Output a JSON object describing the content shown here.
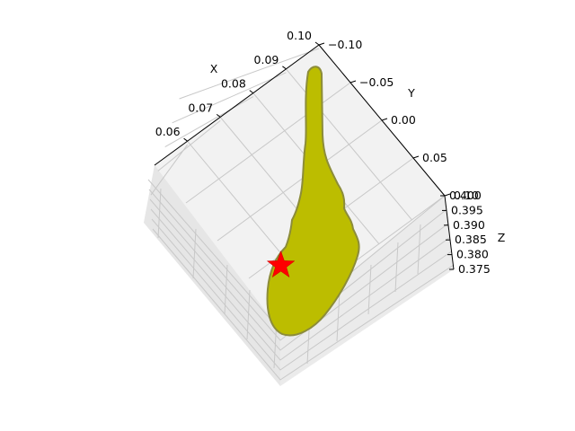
{
  "chart_data": {
    "type": "scatter",
    "projection": "3d",
    "title": "",
    "xlabel": "X",
    "ylabel": "Y",
    "zlabel": "Z",
    "xlim": [
      0.05,
      0.1
    ],
    "ylim": [
      -0.1,
      0.1
    ],
    "zlim": [
      0.375,
      0.4
    ],
    "x_ticks": [
      "0.06",
      "0.07",
      "0.08",
      "0.09",
      "0.10"
    ],
    "y_ticks": [
      "−0.10",
      "−0.05",
      "0.00",
      "0.05",
      "0.10"
    ],
    "z_ticks": [
      "0.375",
      "0.380",
      "0.385",
      "0.390",
      "0.395",
      "0.400"
    ],
    "grid": true,
    "series": [
      {
        "marker": "circle",
        "color": "#bcbd00",
        "edge_color": "#8c8c3a"
      },
      {
        "marker": "star",
        "color": "#ff0000",
        "x": 0.062,
        "y": 0.045,
        "z": 0.39
      }
    ]
  }
}
